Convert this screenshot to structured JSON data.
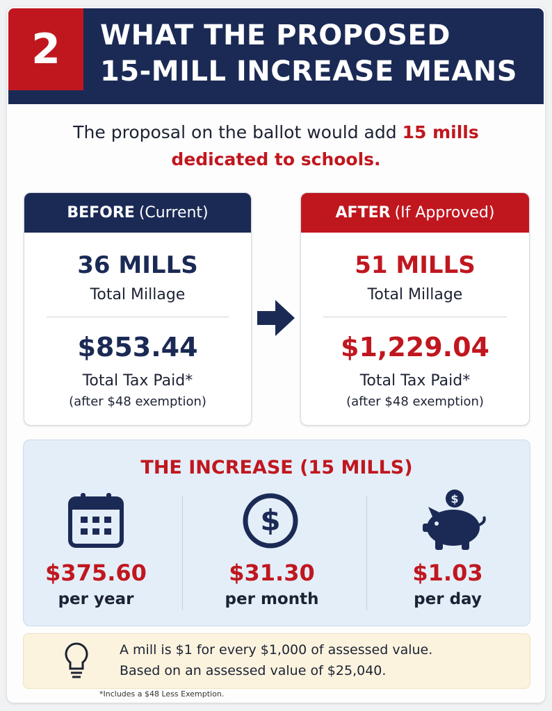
{
  "header": {
    "number": "2",
    "title_lines": [
      "WHAT THE PROPOSED",
      "15-MILL INCREASE MEANS"
    ]
  },
  "intro": {
    "text": "The proposal on the ballot would add",
    "highlight": [
      "15 mills",
      "dedicated to schools."
    ]
  },
  "before": {
    "label": "BEFORE",
    "qualifier": "(Current)",
    "millage": "36 MILLS",
    "millage_label": "Total Millage",
    "tax": "$853.44",
    "tax_label": "Total Tax Paid*",
    "exemption": "(after $48 exemption)"
  },
  "after": {
    "label": "AFTER",
    "qualifier": "(If Approved)",
    "millage": "51 MILLS",
    "millage_label": "Total Millage",
    "tax": "$1,229.04",
    "tax_label": "Total Tax Paid*",
    "exemption": "(after $48 exemption)"
  },
  "increase": {
    "title": "THE INCREASE (15 MILLS)",
    "items": [
      {
        "amount": "$375.60",
        "period": "per year"
      },
      {
        "amount": "$31.30",
        "period": "per month"
      },
      {
        "amount": "$1.03",
        "period": "per day"
      }
    ]
  },
  "note": {
    "lines": [
      "A mill is $1 for every $1,000 of assessed value.",
      "Based on an assessed value of $25,040."
    ]
  },
  "footnote": "*Includes a $48 Less Exemption."
}
